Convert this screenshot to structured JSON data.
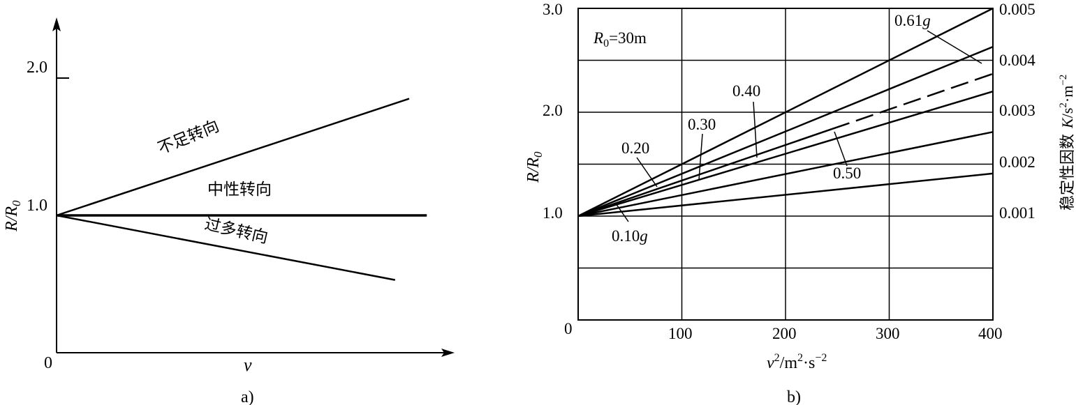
{
  "chart_data": [
    {
      "panel": "a)",
      "type": "line",
      "ylabel": "R/R",
      "ylabel_sub": "0",
      "xlabel": "v",
      "origin_label": "0",
      "ytick_labels": [
        "2.0",
        "1.0"
      ],
      "yticks": [
        2.0,
        1.0
      ],
      "series": [
        {
          "name": "不足转向",
          "x": [
            0,
            1
          ],
          "y": [
            1.0,
            1.85
          ]
        },
        {
          "name": "中性转向",
          "x": [
            0,
            1.05
          ],
          "y": [
            1.0,
            1.0
          ]
        },
        {
          "name": "过多转向",
          "x": [
            0,
            0.96
          ],
          "y": [
            1.0,
            0.53
          ]
        }
      ],
      "xlim": [
        0,
        1.2
      ],
      "ylim": [
        0,
        2.55
      ]
    },
    {
      "panel": "b)",
      "type": "line",
      "annotation": "R",
      "annotation_sub": "0",
      "annotation_rest": "=30m",
      "ylabel": "R/R",
      "ylabel_sub": "0",
      "xlabel": "v",
      "xlabel_sup1": "2",
      "xlabel_mid": "/m",
      "xlabel_sup2": "2",
      "xlabel_dot": "·s",
      "xlabel_sup3": "−2",
      "y2label": "稳定性因数",
      "y2label_var": "K",
      "y2label_unit": "/s",
      "y2label_sup1": "2",
      "y2label_dot": "·m",
      "y2label_sup2": "−2",
      "origin_label": "0",
      "xticks": [
        100,
        200,
        300,
        400
      ],
      "xtick_labels": [
        "100",
        "200",
        "300",
        "400"
      ],
      "yticks": [
        1.0,
        2.0,
        3.0
      ],
      "ytick_labels": [
        "1.0",
        "2.0",
        "3.0"
      ],
      "y2ticks": [
        1.0,
        1.5,
        2.0,
        2.5,
        3.0
      ],
      "y2tick_labels": [
        "0.001",
        "0.002",
        "0.003",
        "0.004",
        "0.005"
      ],
      "xlim": [
        0,
        400
      ],
      "ylim": [
        0,
        3.0
      ],
      "grid": true,
      "series": [
        {
          "name": "0.61g",
          "x": [
            0,
            400
          ],
          "y": [
            1.0,
            3.0
          ]
        },
        {
          "name": "0.50",
          "x": [
            0,
            400
          ],
          "y": [
            1.0,
            2.63
          ]
        },
        {
          "name": "0.40",
          "x": [
            0,
            400
          ],
          "y": [
            1.0,
            2.37
          ],
          "dashed_from": 245
        },
        {
          "name": "0.30",
          "x": [
            0,
            400
          ],
          "y": [
            1.0,
            2.2
          ]
        },
        {
          "name": "0.20",
          "x": [
            0,
            400
          ],
          "y": [
            1.0,
            1.81
          ]
        },
        {
          "name": "0.10g",
          "x": [
            0,
            400
          ],
          "y": [
            1.0,
            1.41
          ]
        }
      ],
      "labels": [
        {
          "text": "0.61",
          "suffix": "g",
          "series": 0
        },
        {
          "text": "0.40",
          "suffix": "",
          "series": 2
        },
        {
          "text": "0.30",
          "suffix": "",
          "series": 3
        },
        {
          "text": "0.20",
          "suffix": "",
          "series": 4
        },
        {
          "text": "0.50",
          "suffix": "",
          "series": 1
        },
        {
          "text": "0.10",
          "suffix": "g",
          "series": 5
        }
      ]
    }
  ]
}
